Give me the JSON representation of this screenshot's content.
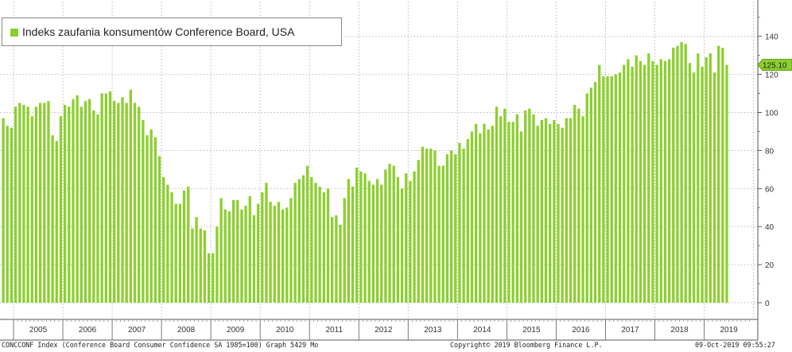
{
  "chart_data": {
    "type": "bar",
    "title": "Indeks zaufania konsumentów Conference Board, USA",
    "legend": [
      {
        "label": "Indeks zaufania konsumentów Conference Board, USA",
        "color": "#8ccf2e"
      }
    ],
    "legend_position": "top-left",
    "y_axis_side": "right",
    "ylim": [
      -4,
      160
    ],
    "yticks": [
      0,
      20,
      40,
      60,
      80,
      100,
      120,
      140
    ],
    "grid": true,
    "last_value_label": "125.10",
    "x_categories": [
      "2005",
      "2006",
      "2007",
      "2008",
      "2009",
      "2010",
      "2011",
      "2012",
      "2013",
      "2014",
      "2015",
      "2016",
      "2017",
      "2018",
      "2019"
    ],
    "series": [
      {
        "name": "Indeks zaufania konsumentów Conference Board, USA",
        "color": "#8ccf2e",
        "start": "2004-10",
        "frequency": "monthly",
        "values": [
          97,
          93,
          92,
          103,
          105,
          104,
          103,
          98,
          103,
          105,
          105,
          106,
          88,
          85,
          98,
          104,
          103,
          107,
          109,
          103,
          106,
          107,
          101,
          99,
          110,
          110,
          111,
          106,
          105,
          108,
          105,
          112,
          105,
          103,
          96,
          88,
          91,
          87,
          77,
          66,
          62,
          58,
          52,
          52,
          59,
          61,
          39,
          45,
          39,
          38,
          26,
          26,
          40,
          55,
          49,
          48,
          54,
          54,
          49,
          51,
          56,
          46,
          52,
          58,
          63,
          53,
          51,
          53,
          49,
          50,
          55,
          63,
          65,
          67,
          72,
          66,
          63,
          61,
          58,
          60,
          45,
          46,
          41,
          55,
          65,
          61,
          71,
          69,
          68,
          64,
          62,
          65,
          62,
          70,
          73,
          72,
          66,
          60,
          68,
          64,
          69,
          75,
          82,
          81,
          81,
          80,
          72,
          72,
          78,
          80,
          78,
          84,
          81,
          86,
          90,
          94,
          89,
          94,
          91,
          93,
          103,
          98,
          102,
          95,
          95,
          99,
          90,
          101,
          102,
          99,
          93,
          96,
          97,
          94,
          96,
          94,
          92,
          97,
          97,
          104,
          102,
          98,
          110,
          113,
          116,
          125,
          119,
          119,
          119,
          120,
          121,
          125,
          128,
          124,
          130,
          127,
          125,
          131,
          127,
          125,
          128,
          127,
          128,
          134,
          135,
          137,
          136,
          126,
          121,
          131,
          124,
          129,
          131,
          121,
          135,
          134,
          125
        ]
      }
    ]
  },
  "footer": {
    "left": "CONCCONF Index (Conference Board Consumer Confidence SA 1985=100) Graph 5429  Mo",
    "center": "Copyright© 2019 Bloomberg Finance L.P.",
    "right": "09-Oct-2019 09:55:27"
  }
}
